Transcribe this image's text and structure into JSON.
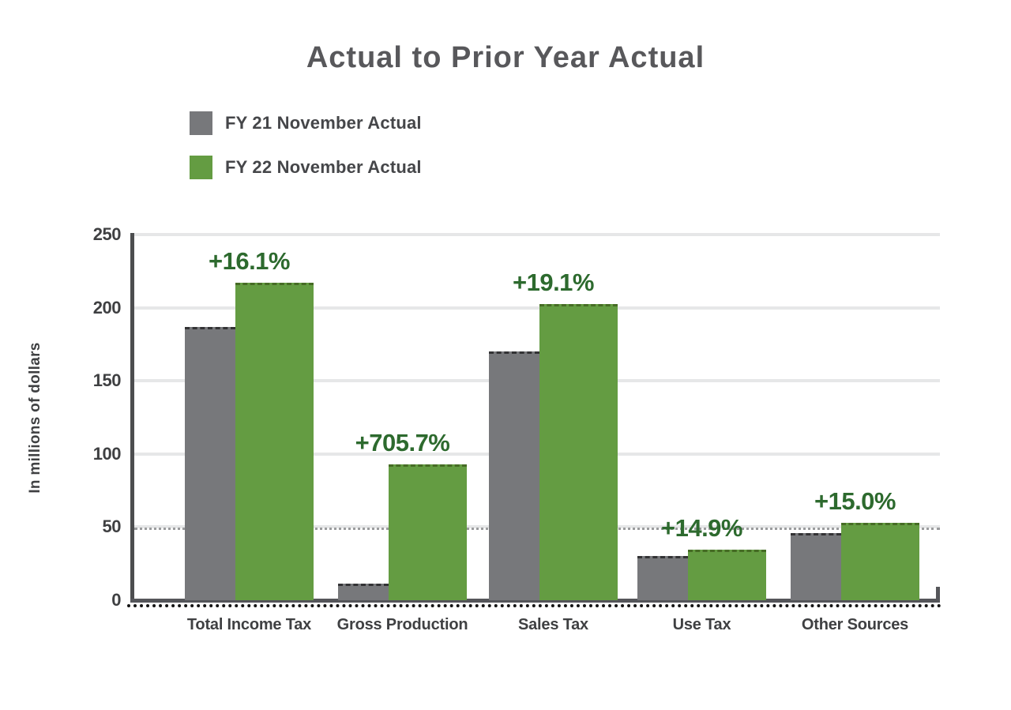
{
  "title": "Actual to Prior Year Actual",
  "legend": {
    "items": [
      {
        "label": "FY 21 November Actual",
        "color": "#77787b"
      },
      {
        "label": "FY 22 November Actual",
        "color": "#649c42"
      }
    ]
  },
  "chart_data": {
    "type": "bar",
    "title": "Actual to Prior Year Actual",
    "xlabel": "",
    "ylabel": "In millions of dollars",
    "ylim": [
      0,
      250
    ],
    "yticks": [
      0,
      50,
      100,
      150,
      200,
      250
    ],
    "grid": "horizontal",
    "legend_position": "top-left",
    "categories": [
      "Total Income Tax",
      "Gross Production",
      "Sales Tax",
      "Use Tax",
      "Other Sources"
    ],
    "series": [
      {
        "name": "FY 21 November Actual",
        "color": "#77787b",
        "values": [
          187,
          11.5,
          170,
          30,
          46
        ]
      },
      {
        "name": "FY 22 November Actual",
        "color": "#649c42",
        "values": [
          217.1,
          92.7,
          202.5,
          34.5,
          52.9
        ]
      }
    ],
    "annotations": {
      "color": "#2d6a2e",
      "labels": [
        "+16.1%",
        "+705.7%",
        "+19.1%",
        "+14.9%",
        "+15.0%"
      ]
    }
  }
}
